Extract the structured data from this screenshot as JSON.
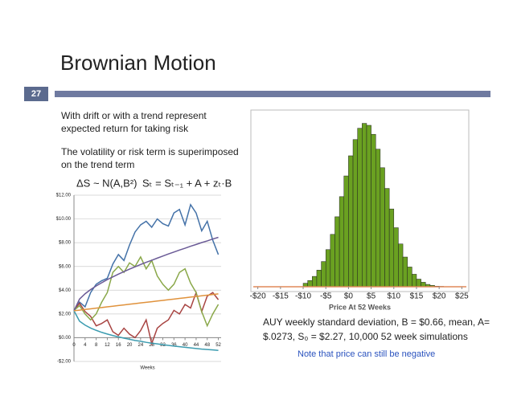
{
  "slide": {
    "title": "Brownian Motion",
    "number": "27",
    "bullets": [
      "With drift or with a trend represent",
      "expected return for taking risk",
      "The volatility or risk term is superimposed",
      "on the trend term"
    ],
    "formulas": [
      "ΔS ~ N(A,B²)",
      "Sₜ = Sₜ₋₁ + A + zₜ·B"
    ],
    "caption": [
      "AUY weekly standard deviation, B = $0.66, mean, A=",
      "$.0273, S₀ = $2.27, 10,000 52 week simulations"
    ],
    "note": "Note that price can still be negative"
  },
  "chart_data": [
    {
      "type": "line",
      "xlabel": "Weeks",
      "x": [
        0,
        2,
        4,
        6,
        8,
        10,
        12,
        14,
        16,
        18,
        20,
        22,
        24,
        26,
        28,
        30,
        32,
        34,
        36,
        38,
        40,
        42,
        44,
        46,
        48,
        50,
        52
      ],
      "xlim": [
        0,
        53
      ],
      "xticks": [
        0,
        4,
        8,
        12,
        16,
        20,
        24,
        28,
        32,
        36,
        40,
        44,
        48,
        52
      ],
      "ylim": [
        -2,
        12
      ],
      "yticks": [
        {
          "value": -2,
          "label": "-$2.00"
        },
        {
          "value": 0,
          "label": "$0.00"
        },
        {
          "value": 2,
          "label": "$2.00"
        },
        {
          "value": 4,
          "label": "$4.00"
        },
        {
          "value": 6,
          "label": "$6.00"
        },
        {
          "value": 8,
          "label": "$8.00"
        },
        {
          "value": 10,
          "label": "$10.00"
        },
        {
          "value": 12,
          "label": "$12.00"
        }
      ],
      "grid": true,
      "series": [
        {
          "color": "#4472a8",
          "values": [
            2.3,
            3.0,
            2.6,
            3.8,
            4.5,
            4.8,
            5.0,
            6.2,
            7.0,
            6.5,
            7.8,
            8.9,
            9.5,
            9.8,
            9.3,
            10.0,
            9.6,
            9.4,
            10.5,
            10.8,
            9.5,
            11.2,
            10.5,
            9.0,
            9.8,
            8.2,
            7.0
          ]
        },
        {
          "color": "#a84442",
          "values": [
            2.3,
            2.9,
            2.2,
            1.8,
            1.0,
            1.2,
            1.5,
            0.5,
            0.2,
            0.8,
            0.3,
            0.0,
            0.6,
            1.5,
            -0.5,
            0.8,
            1.2,
            1.5,
            2.3,
            2.0,
            2.8,
            2.5,
            3.8,
            2.2,
            3.5,
            3.8,
            3.2
          ]
        },
        {
          "color": "#8aa84a",
          "values": [
            2.3,
            2.7,
            2.0,
            1.5,
            2.0,
            3.0,
            3.8,
            5.5,
            6.0,
            5.5,
            6.3,
            6.0,
            6.8,
            5.8,
            6.5,
            5.2,
            4.5,
            4.0,
            4.5,
            5.5,
            5.8,
            4.6,
            3.8,
            2.2,
            1.0,
            2.0,
            2.8
          ]
        },
        {
          "color": "#6a5a96",
          "values": [
            2.27,
            3.25,
            3.7,
            4.05,
            4.36,
            4.63,
            4.89,
            5.12,
            5.35,
            5.56,
            5.77,
            5.97,
            6.16,
            6.35,
            6.52,
            6.7,
            6.87,
            7.05,
            7.21,
            7.38,
            7.53,
            7.7,
            7.85,
            8.01,
            8.15,
            8.31,
            8.45
          ]
        },
        {
          "color": "#3c9cb0",
          "values": [
            2.27,
            1.39,
            1.06,
            0.81,
            0.62,
            0.45,
            0.31,
            0.18,
            0.07,
            -0.04,
            -0.13,
            -0.23,
            -0.3,
            -0.39,
            -0.46,
            -0.52,
            -0.59,
            -0.65,
            -0.71,
            -0.76,
            -0.81,
            -0.86,
            -0.91,
            -0.96,
            -0.99,
            -1.03,
            -1.07
          ]
        },
        {
          "color": "#e0923c",
          "values": [
            2.27,
            2.32,
            2.38,
            2.43,
            2.49,
            2.54,
            2.6,
            2.65,
            2.71,
            2.76,
            2.82,
            2.87,
            2.93,
            2.98,
            3.03,
            3.09,
            3.14,
            3.2,
            3.25,
            3.31,
            3.36,
            3.42,
            3.47,
            3.53,
            3.58,
            3.64,
            3.69
          ]
        }
      ]
    },
    {
      "type": "histogram",
      "xlabel": "Price At 52 Weeks",
      "color": "#6aa121",
      "bins": [
        -10,
        -9,
        -8,
        -7,
        -6,
        -5,
        -4,
        -3,
        -2,
        -1,
        0,
        1,
        2,
        3,
        4,
        5,
        6,
        7,
        8,
        9,
        10,
        11,
        12,
        13,
        14,
        15,
        16,
        17,
        18,
        19,
        20,
        21,
        22,
        23
      ],
      "counts": [
        18,
        32,
        53,
        85,
        129,
        190,
        268,
        358,
        461,
        567,
        670,
        753,
        811,
        836,
        826,
        780,
        704,
        609,
        503,
        398,
        302,
        219,
        152,
        101,
        64,
        39,
        23,
        12,
        7,
        3,
        2,
        1,
        1
      ],
      "xlim": [
        -21,
        26
      ],
      "xticks": [
        {
          "value": -20,
          "label": "-$20"
        },
        {
          "value": -15,
          "label": "-$15"
        },
        {
          "value": -10,
          "label": "-$10"
        },
        {
          "value": -5,
          "label": "-$5"
        },
        {
          "value": 0,
          "label": "$0"
        },
        {
          "value": 5,
          "label": "$5"
        },
        {
          "value": 10,
          "label": "$10"
        },
        {
          "value": 15,
          "label": "$15"
        },
        {
          "value": 20,
          "label": "$20"
        },
        {
          "value": 25,
          "label": "$25"
        }
      ],
      "ylim": [
        0,
        900
      ]
    }
  ]
}
